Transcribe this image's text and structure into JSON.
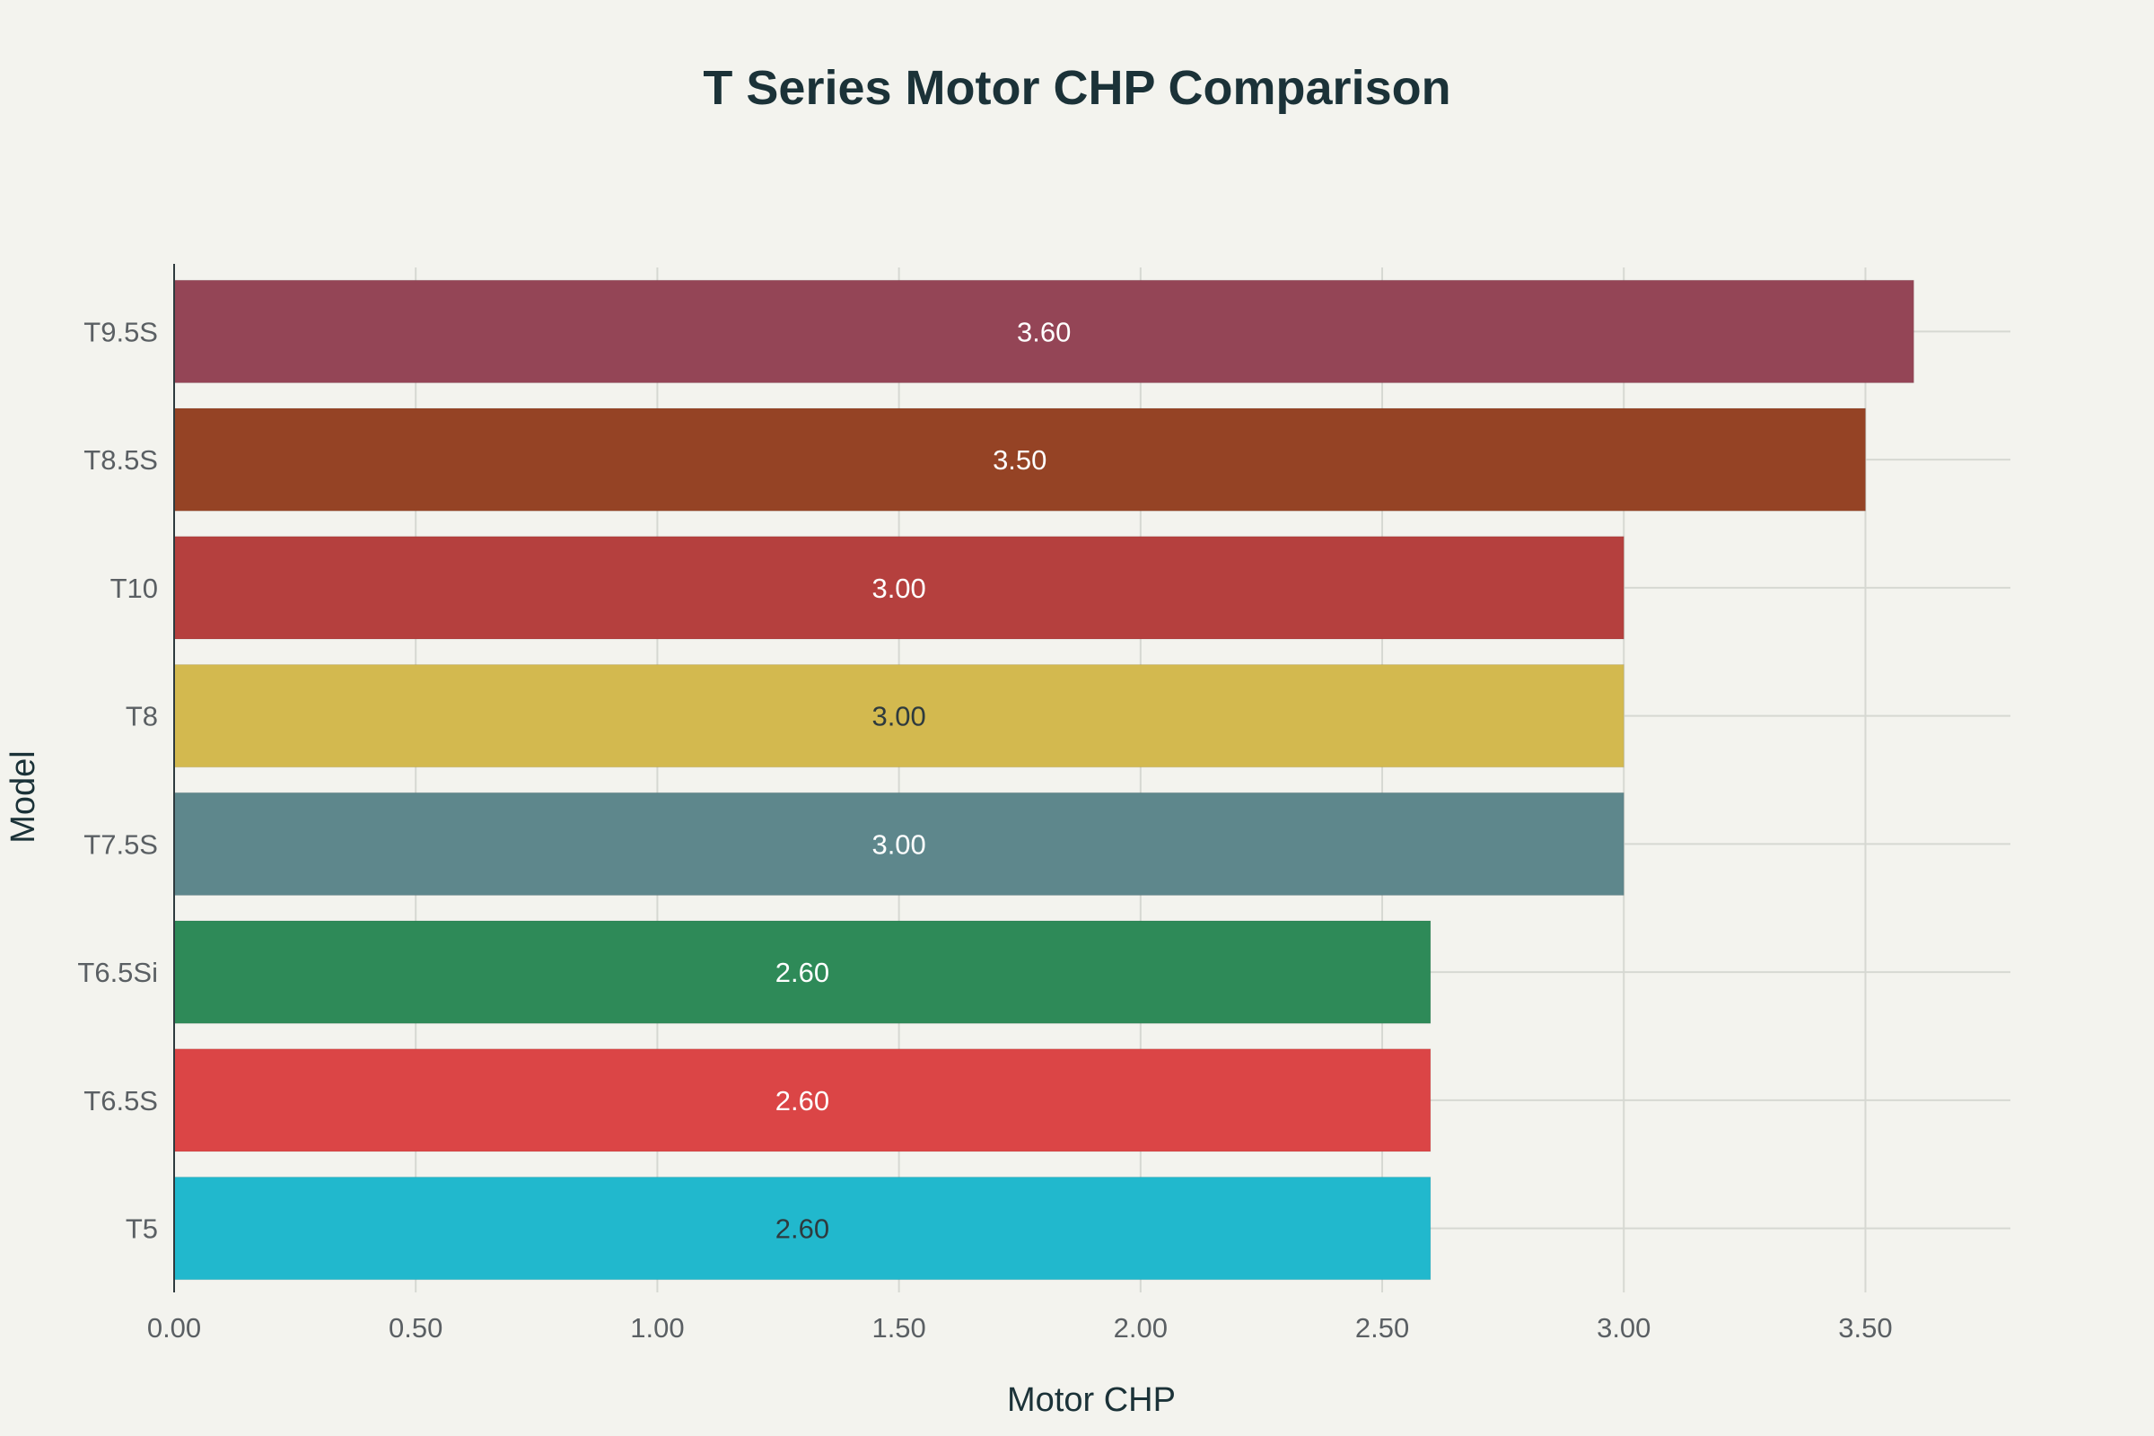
{
  "chart_data": {
    "type": "bar",
    "orientation": "horizontal",
    "title": "T Series Motor CHP Comparison",
    "xlabel": "Motor CHP",
    "ylabel": "Model",
    "categories": [
      "T5",
      "T6.5S",
      "T6.5Si",
      "T7.5S",
      "T8",
      "T10",
      "T8.5S",
      "T9.5S"
    ],
    "values": [
      2.6,
      2.6,
      2.6,
      3.0,
      3.0,
      3.0,
      3.5,
      3.6
    ],
    "value_labels": [
      "2.60",
      "2.60",
      "2.60",
      "3.00",
      "3.00",
      "3.00",
      "3.50",
      "3.60"
    ],
    "colors": [
      "#21b8cd",
      "#db4546",
      "#2e8a58",
      "#5e878c",
      "#d3b94f",
      "#b5403e",
      "#954325",
      "#944556"
    ],
    "label_colors": [
      "#2e3a3e",
      "#ffffff",
      "#ffffff",
      "#ffffff",
      "#2e3a3e",
      "#ffffff",
      "#ffffff",
      "#ffffff"
    ],
    "xlim": [
      0,
      3.8
    ],
    "xticks": [
      0,
      0.5,
      1.0,
      1.5,
      2.0,
      2.5,
      3.0,
      3.5
    ],
    "xtick_labels": [
      "0.00",
      "0.50",
      "1.00",
      "1.50",
      "2.00",
      "2.50",
      "3.00",
      "3.50"
    ],
    "grid": true,
    "legend": "none"
  }
}
